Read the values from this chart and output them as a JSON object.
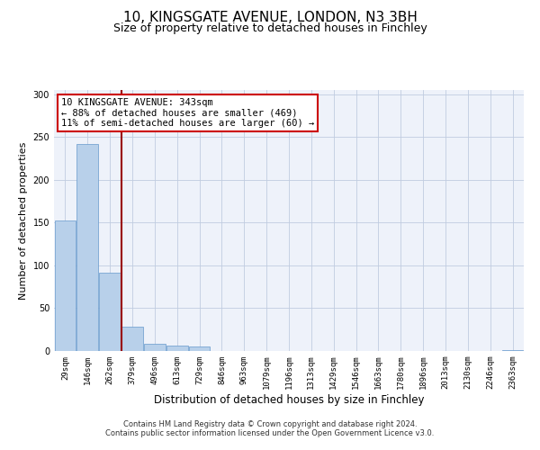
{
  "title": "10, KINGSGATE AVENUE, LONDON, N3 3BH",
  "subtitle": "Size of property relative to detached houses in Finchley",
  "xlabel": "Distribution of detached houses by size in Finchley",
  "ylabel": "Number of detached properties",
  "bar_labels": [
    "29sqm",
    "146sqm",
    "262sqm",
    "379sqm",
    "496sqm",
    "613sqm",
    "729sqm",
    "846sqm",
    "963sqm",
    "1079sqm",
    "1196sqm",
    "1313sqm",
    "1429sqm",
    "1546sqm",
    "1663sqm",
    "1780sqm",
    "1896sqm",
    "2013sqm",
    "2130sqm",
    "2246sqm",
    "2363sqm"
  ],
  "bar_values": [
    152,
    242,
    92,
    28,
    8,
    6,
    5,
    0,
    0,
    0,
    0,
    0,
    0,
    0,
    0,
    0,
    0,
    0,
    0,
    0,
    1
  ],
  "bar_color": "#b8d0ea",
  "bar_edge_color": "#6699cc",
  "background_color": "#eef2fa",
  "vline_x": 2.5,
  "vline_color": "#990000",
  "annotation_text": "10 KINGSGATE AVENUE: 343sqm\n← 88% of detached houses are smaller (469)\n11% of semi-detached houses are larger (60) →",
  "annotation_box_color": "#ffffff",
  "annotation_box_edge_color": "#cc0000",
  "ylim": [
    0,
    305
  ],
  "yticks": [
    0,
    50,
    100,
    150,
    200,
    250,
    300
  ],
  "footer_line1": "Contains HM Land Registry data © Crown copyright and database right 2024.",
  "footer_line2": "Contains public sector information licensed under the Open Government Licence v3.0.",
  "title_fontsize": 11,
  "subtitle_fontsize": 9,
  "tick_fontsize": 6.5,
  "ylabel_fontsize": 8,
  "xlabel_fontsize": 8.5,
  "annotation_fontsize": 7.5,
  "footer_fontsize": 6
}
